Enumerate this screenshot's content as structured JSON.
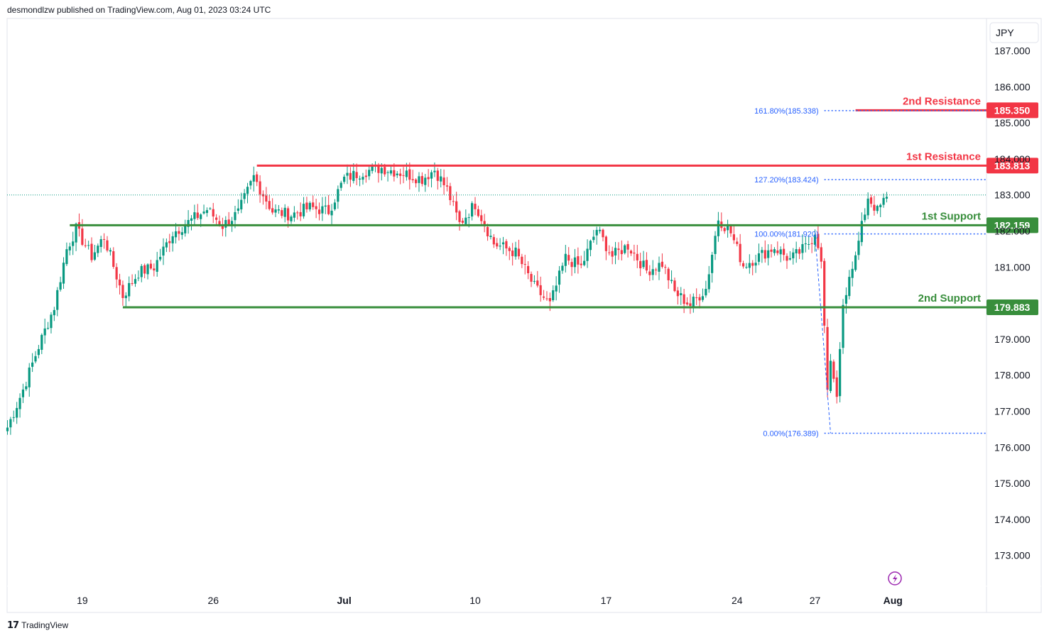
{
  "header": {
    "publish_note": "desmondlzw published on TradingView.com, Aug 01, 2023 03:24 UTC"
  },
  "footer": {
    "brand": "TradingView"
  },
  "colors": {
    "up": "#089981",
    "down": "#f23645",
    "support": "#388e3c",
    "resistance": "#f23645",
    "fib": "#2962ff"
  },
  "chart_data": {
    "type": "candlestick",
    "currency": "JPY",
    "ylim": [
      172.2,
      188.0
    ],
    "y_ticks": [
      "187.000",
      "186.000",
      "185.000",
      "184.000",
      "183.000",
      "182.000",
      "181.000",
      "179.000",
      "178.000",
      "177.000",
      "176.000",
      "175.000",
      "174.000",
      "173.000"
    ],
    "x_ticks": [
      {
        "label": "19",
        "i": 24
      },
      {
        "label": "26",
        "i": 66
      },
      {
        "label": "Jul",
        "i": 108
      },
      {
        "label": "10",
        "i": 150
      },
      {
        "label": "17",
        "i": 192
      },
      {
        "label": "24",
        "i": 234
      },
      {
        "label": "27",
        "i": 259
      },
      {
        "label": "Aug",
        "i": 284
      }
    ],
    "last_price": 183.0,
    "levels": [
      {
        "name": "2nd Resistance",
        "value": 185.35,
        "tag": "185.350",
        "kind": "resistance",
        "from_i": 272
      },
      {
        "name": "1st Resistance",
        "value": 183.813,
        "tag": "183.813",
        "kind": "resistance",
        "from_i": 80
      },
      {
        "name": "1st Support",
        "value": 182.159,
        "tag": "182.159",
        "kind": "support",
        "from_i": 20
      },
      {
        "name": "2nd Support",
        "value": 179.883,
        "tag": "179.883",
        "kind": "support",
        "from_i": 37
      }
    ],
    "fib_levels": [
      {
        "label": "161.80%(185.338)",
        "value": 185.338,
        "from_i": 262
      },
      {
        "label": "127.20%(183.424)",
        "value": 183.424,
        "from_i": 262
      },
      {
        "label": "100.00%(181.920)",
        "value": 181.92,
        "from_i": 262
      },
      {
        "label": "0.00%(176.389)",
        "value": 176.389,
        "from_i": 262
      }
    ],
    "fib_swing": [
      {
        "i": 259,
        "v": 181.92
      },
      {
        "i": 264,
        "v": 176.39
      }
    ],
    "candle_anchors": [
      [
        0,
        176.55
      ],
      [
        5,
        177.6
      ],
      [
        10,
        178.8
      ],
      [
        15,
        179.9
      ],
      [
        19,
        181.5
      ],
      [
        22,
        182.05
      ],
      [
        27,
        181.3
      ],
      [
        31,
        181.85
      ],
      [
        37,
        180.2
      ],
      [
        42,
        180.85
      ],
      [
        47,
        181.0
      ],
      [
        53,
        181.95
      ],
      [
        59,
        182.3
      ],
      [
        64,
        182.6
      ],
      [
        69,
        182.15
      ],
      [
        74,
        182.5
      ],
      [
        79,
        183.5
      ],
      [
        85,
        182.55
      ],
      [
        91,
        182.45
      ],
      [
        97,
        182.65
      ],
      [
        103,
        182.55
      ],
      [
        108,
        183.45
      ],
      [
        114,
        183.65
      ],
      [
        120,
        183.75
      ],
      [
        127,
        183.6
      ],
      [
        133,
        183.45
      ],
      [
        137,
        183.7
      ],
      [
        141,
        183.15
      ],
      [
        145,
        182.2
      ],
      [
        150,
        182.75
      ],
      [
        156,
        181.65
      ],
      [
        163,
        181.4
      ],
      [
        169,
        180.45
      ],
      [
        174,
        179.95
      ],
      [
        179,
        181.25
      ],
      [
        184,
        181.0
      ],
      [
        189,
        182.05
      ],
      [
        194,
        181.3
      ],
      [
        199,
        181.6
      ],
      [
        205,
        180.9
      ],
      [
        210,
        181.1
      ],
      [
        214,
        180.3
      ],
      [
        219,
        179.95
      ],
      [
        224,
        180.4
      ],
      [
        228,
        182.35
      ],
      [
        232,
        181.95
      ],
      [
        236,
        181.05
      ],
      [
        241,
        181.3
      ],
      [
        246,
        181.55
      ],
      [
        251,
        181.2
      ],
      [
        256,
        181.55
      ],
      [
        259,
        181.9
      ],
      [
        261,
        181.15
      ],
      [
        263,
        177.6
      ],
      [
        264,
        178.4
      ],
      [
        266,
        177.4
      ],
      [
        268,
        180.05
      ],
      [
        271,
        180.95
      ],
      [
        273,
        181.7
      ],
      [
        276,
        182.95
      ],
      [
        279,
        182.55
      ],
      [
        282,
        182.95
      ]
    ]
  }
}
